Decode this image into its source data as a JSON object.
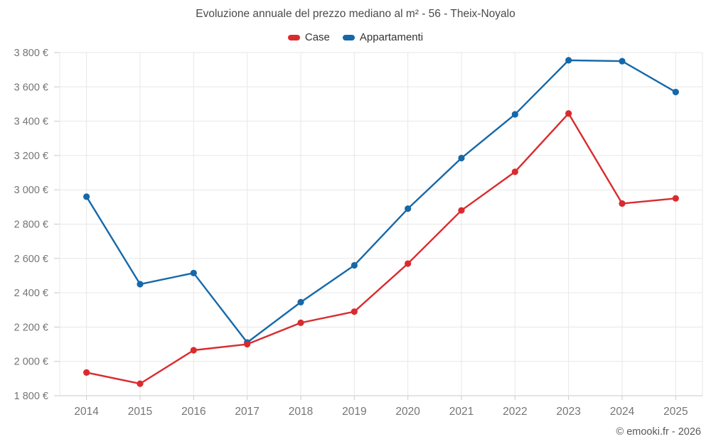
{
  "title": "Evoluzione annuale del prezzo mediano al m² - 56 - Theix-Noyalo",
  "credits": "© emooki.fr - 2026",
  "colors": {
    "case_red": "#d92b2e",
    "appartamenti_blue": "#1668a8",
    "gridline": "#e7e7e7",
    "axis": "#c9c9c9",
    "tick_label": "#757575",
    "title_text": "#4a4a4a"
  },
  "legend": {
    "items": [
      {
        "label": "Case",
        "color": "#d92b2e"
      },
      {
        "label": "Appartamenti",
        "color": "#1668a8"
      }
    ]
  },
  "chart_data": {
    "type": "line",
    "title": "Evoluzione annuale del prezzo mediano al m² - 56 - Theix-Noyalo",
    "categories": [
      "2014",
      "2015",
      "2016",
      "2017",
      "2018",
      "2019",
      "2020",
      "2021",
      "2022",
      "2023",
      "2024",
      "2025"
    ],
    "series": [
      {
        "name": "Case",
        "color": "#d92b2e",
        "values": [
          1935,
          1870,
          2065,
          2100,
          2225,
          2290,
          2570,
          2880,
          3105,
          3445,
          2920,
          2950
        ]
      },
      {
        "name": "Appartamenti",
        "color": "#1668a8",
        "values": [
          2960,
          2450,
          2515,
          2110,
          2345,
          2560,
          2890,
          3185,
          3440,
          3755,
          3750,
          3570
        ]
      }
    ],
    "xlabel": "",
    "ylabel": "",
    "ylim": [
      1800,
      3800
    ],
    "ytick_step": 200,
    "ytick_suffix": " €",
    "grid": true,
    "legend_position": "top",
    "markers": true
  }
}
